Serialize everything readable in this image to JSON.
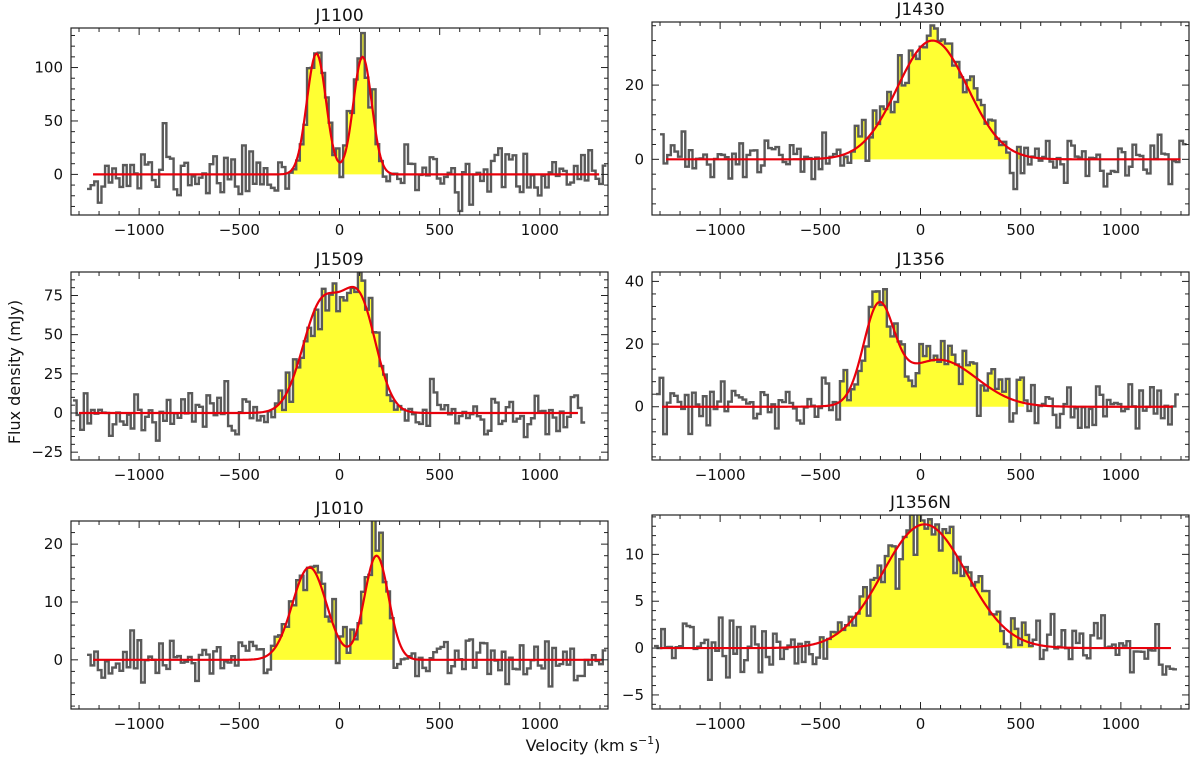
{
  "figure": {
    "xlabel": "Velocity (km s$^{-1}$)",
    "xlabel_text": "Velocity (km s",
    "xlabel_sup": "−1",
    "xlabel_close": ")",
    "ylabel": "Flux density (mJy)"
  },
  "colors": {
    "fill": "#ffff33",
    "fit": "#e8000b",
    "spectrum": "#5a5a5a",
    "axes": "#222222"
  },
  "chart_data": [
    {
      "type": "line",
      "title": "J1100",
      "xlim": [
        -1340,
        1340
      ],
      "ylim": [
        -38,
        137
      ],
      "xticks": [
        -1000,
        -500,
        0,
        500,
        1000
      ],
      "xtick_labels": [
        "−1000",
        "−500",
        "0",
        "500",
        "1000"
      ],
      "yticks": [
        0,
        50,
        100
      ],
      "ytick_labels": [
        "0",
        "50",
        "100"
      ],
      "range": [
        -1260,
        1320
      ],
      "bin": 18,
      "noise": 12,
      "seed": 11,
      "spikes": [
        [
          -880,
          45
        ],
        [
          -150,
          15
        ],
        [
          -110,
          25
        ],
        [
          120,
          8
        ]
      ],
      "fit": {
        "components": [
          {
            "amp": 113,
            "center": -115,
            "sigma": 48
          },
          {
            "amp": 110,
            "center": 115,
            "sigma": 46
          }
        ]
      }
    },
    {
      "type": "line",
      "title": "J1430",
      "xlim": [
        -1340,
        1340
      ],
      "ylim": [
        -15,
        37
      ],
      "xticks": [
        -1000,
        -500,
        0,
        500,
        1000
      ],
      "xtick_labels": [
        "−1000",
        "−500",
        "0",
        "500",
        "1000"
      ],
      "yticks": [
        0,
        20
      ],
      "ytick_labels": [
        "0",
        "20"
      ],
      "range": [
        -1300,
        1320
      ],
      "bin": 18,
      "noise": 3.4,
      "seed": 23,
      "spikes": [
        [
          20,
          3
        ],
        [
          80,
          4
        ],
        [
          480,
          -8
        ]
      ],
      "fit": {
        "components": [
          {
            "amp": 32,
            "center": 60,
            "sigma": 175
          }
        ]
      }
    },
    {
      "type": "line",
      "title": "J1509",
      "xlim": [
        -1340,
        1340
      ],
      "ylim": [
        -30,
        90
      ],
      "xticks": [
        -1000,
        -500,
        0,
        500,
        1000
      ],
      "xtick_labels": [
        "−1000",
        "−500",
        "0",
        "500",
        "1000"
      ],
      "yticks": [
        -25,
        0,
        25,
        50,
        75
      ],
      "ytick_labels": [
        "−25",
        "0",
        "25",
        "50",
        "75"
      ],
      "range": [
        -1330,
        1210
      ],
      "bin": 18,
      "noise": 7,
      "seed": 37,
      "spikes": [
        [
          -650,
          16
        ],
        [
          -20,
          4
        ],
        [
          110,
          5
        ]
      ],
      "fit": {
        "components": [
          {
            "amp": 68,
            "center": -90,
            "sigma": 95
          },
          {
            "amp": 68,
            "center": 100,
            "sigma": 85
          }
        ]
      }
    },
    {
      "type": "line",
      "title": "J1356",
      "xlim": [
        -1340,
        1340
      ],
      "ylim": [
        -17,
        43
      ],
      "xticks": [
        -1000,
        -500,
        0,
        500,
        1000
      ],
      "xtick_labels": [
        "−1000",
        "−500",
        "0",
        "500",
        "1000"
      ],
      "yticks": [
        0,
        20,
        40
      ],
      "ytick_labels": [
        "0",
        "20",
        "40"
      ],
      "range": [
        -1320,
        1280
      ],
      "bin": 18,
      "noise": 4,
      "seed": 53,
      "spikes": [
        [
          -230,
          6
        ],
        [
          270,
          8
        ],
        [
          460,
          -8
        ],
        [
          680,
          -8
        ]
      ],
      "fit": {
        "components": [
          {
            "amp": 29,
            "center": -210,
            "sigma": 75
          },
          {
            "amp": 15,
            "center": 90,
            "sigma": 190
          }
        ]
      }
    },
    {
      "type": "line",
      "title": "J1010",
      "xlim": [
        -1340,
        1340
      ],
      "ylim": [
        -8.5,
        24
      ],
      "xticks": [
        -1000,
        -500,
        0,
        500,
        1000
      ],
      "xtick_labels": [
        "−1000",
        "−500",
        "0",
        "500",
        "1000"
      ],
      "yticks": [
        0,
        10,
        20
      ],
      "ytick_labels": [
        "0",
        "10",
        "20"
      ],
      "range": [
        -1260,
        1330
      ],
      "bin": 18,
      "noise": 2.2,
      "seed": 71,
      "spikes": [
        [
          -110,
          3
        ],
        [
          180,
          3
        ],
        [
          200,
          4
        ]
      ],
      "fit": {
        "components": [
          {
            "amp": 16,
            "center": -150,
            "sigma": 85
          },
          {
            "amp": 18,
            "center": 185,
            "sigma": 60
          }
        ]
      }
    },
    {
      "type": "line",
      "title": "J1356N",
      "xlim": [
        -1340,
        1340
      ],
      "ylim": [
        -6.5,
        14.2
      ],
      "xticks": [
        -1000,
        -500,
        0,
        500,
        1000
      ],
      "xtick_labels": [
        "−1000",
        "−500",
        "0",
        "500",
        "1000"
      ],
      "yticks": [
        -5,
        0,
        5,
        10
      ],
      "ytick_labels": [
        "−5",
        "0",
        "5",
        "10"
      ],
      "range": [
        -1330,
        1270
      ],
      "bin": 18,
      "noise": 1.4,
      "seed": 89,
      "spikes": [
        [
          -40,
          1.5
        ],
        [
          30,
          1
        ]
      ],
      "fit": {
        "components": [
          {
            "amp": 13.2,
            "center": 20,
            "sigma": 210
          }
        ]
      }
    }
  ]
}
